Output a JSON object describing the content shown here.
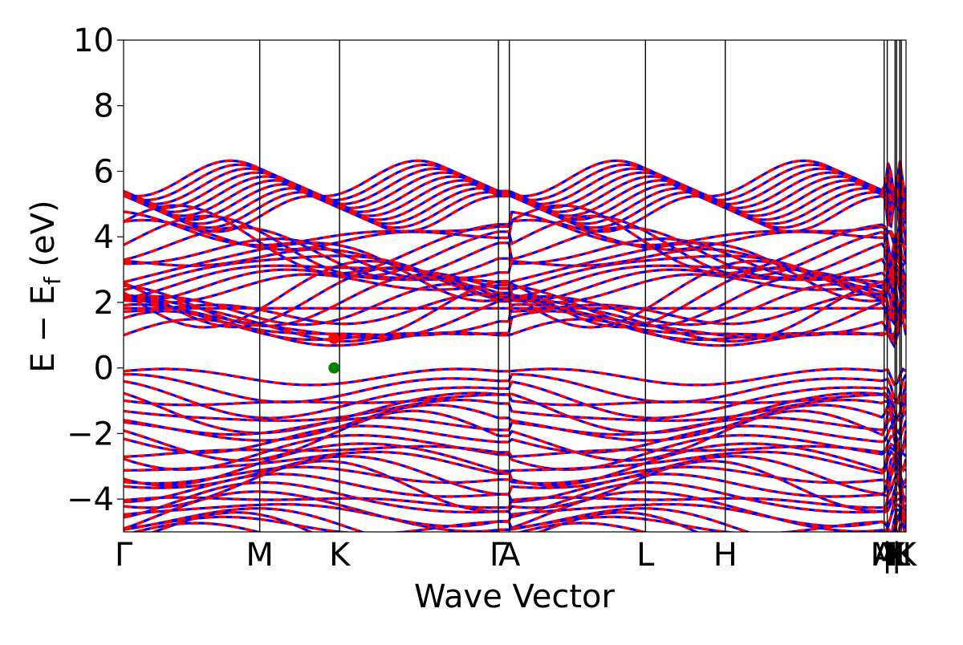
{
  "chart_data": {
    "type": "line",
    "title": "",
    "xlabel": "Wave Vector",
    "ylabel": "E − E",
    "ylabel_sub": "f",
    "ylabel_unit": " (eV)",
    "ylim": [
      -5,
      10
    ],
    "yticks": [
      -4,
      -2,
      0,
      2,
      4,
      6,
      8,
      10
    ],
    "ytick_labels": [
      "−4",
      "−2",
      "0",
      "2",
      "4",
      "6",
      "8",
      "10"
    ],
    "xlim": [
      0,
      1
    ],
    "kpath": [
      {
        "label": "Γ",
        "pos": 0.0
      },
      {
        "label": "M",
        "pos": 0.174
      },
      {
        "label": "K",
        "pos": 0.276
      },
      {
        "label": "Γ",
        "pos": 0.479
      },
      {
        "label": "A",
        "pos": 0.493
      },
      {
        "label": "L",
        "pos": 0.667
      },
      {
        "label": "H",
        "pos": 0.769
      },
      {
        "label": "A",
        "pos": 0.972
      },
      {
        "label": "M",
        "pos": 0.972
      },
      {
        "label": "|",
        "pos": 0.976
      },
      {
        "label": "K",
        "pos": 0.986
      },
      {
        "label": "|",
        "pos": 0.988
      },
      {
        "label": "H",
        "pos": 0.992
      },
      {
        "label": "L",
        "pos": 0.994
      },
      {
        "label": "K",
        "pos": 1.0
      }
    ],
    "grid": false,
    "series": [
      {
        "color": "#0000ff",
        "style": "solid"
      },
      {
        "color": "#ff0000",
        "style": "dashed"
      }
    ],
    "markers": [
      {
        "x": 0.269,
        "y": 0.9,
        "color": "#ff0000"
      },
      {
        "x": 0.269,
        "y": 0.0,
        "color": "#008000"
      }
    ],
    "conduction_band_minimum": 0.9,
    "valence_band_maximum": 0.0
  }
}
